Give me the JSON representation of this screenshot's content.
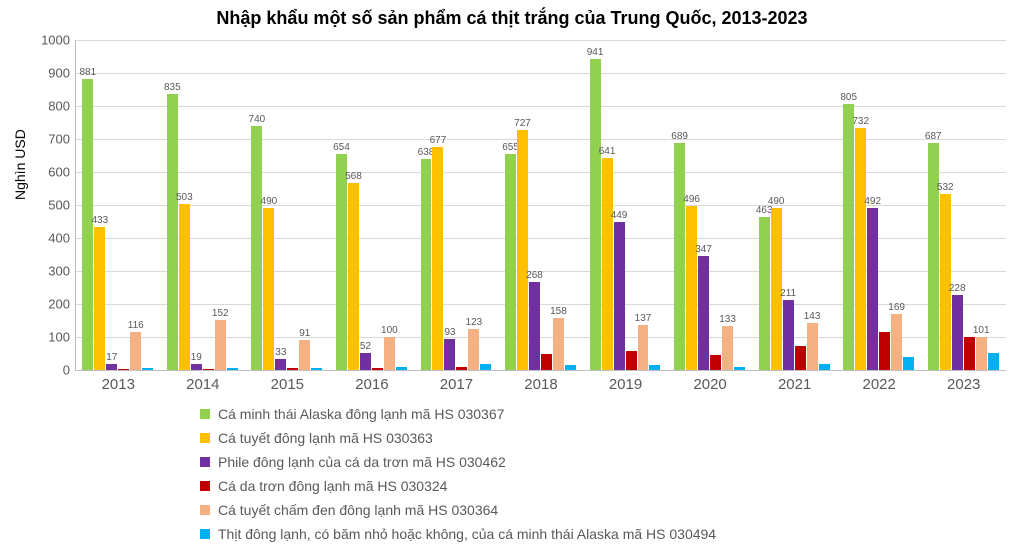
{
  "chart": {
    "type": "bar",
    "title": "Nhập khẩu một số sản phẩm cá thịt trắng của Trung Quốc, 2013-2023",
    "title_fontsize": 18,
    "ylabel": "Nghìn USD",
    "ylabel_fontsize": 14,
    "background_color": "#ffffff",
    "grid_color": "#d9d9d9",
    "axis_color": "#bfbfbf",
    "tick_label_color": "#595959",
    "ylim": [
      0,
      1000
    ],
    "ytick_step": 100,
    "yticks": [
      "0",
      "100",
      "200",
      "300",
      "400",
      "500",
      "600",
      "700",
      "800",
      "900",
      "1000"
    ],
    "categories": [
      "2013",
      "2014",
      "2015",
      "2016",
      "2017",
      "2018",
      "2019",
      "2020",
      "2021",
      "2022",
      "2023"
    ],
    "legend_position": "bottom",
    "bar_gap_ratio": 0.15,
    "series": [
      {
        "name": "Cá minh thái Alaska đông lạnh mã HS 030367",
        "color": "#92d050",
        "values": [
          881,
          835,
          740,
          654,
          638,
          655,
          941,
          689,
          463,
          805,
          687
        ]
      },
      {
        "name": "Cá tuyết đông lạnh mã HS 030363",
        "color": "#ffc000",
        "values": [
          433,
          503,
          490,
          568,
          677,
          727,
          641,
          496,
          490,
          732,
          532
        ]
      },
      {
        "name": "Phile đông lạnh của cá da trơn mã HS 030462",
        "color": "#7030a0",
        "values": [
          17,
          19,
          33,
          52,
          93,
          268,
          449,
          347,
          211,
          492,
          228
        ]
      },
      {
        "name": "Cá da trơn đông lạnh mã HS 030324",
        "color": "#c00000",
        "values": [
          3,
          4,
          5,
          7,
          8,
          48,
          58,
          45,
          72,
          115,
          101
        ]
      },
      {
        "name": "Cá tuyết chấm đen đông lạnh mã HS 030364",
        "color": "#f4b183",
        "values": [
          116,
          152,
          91,
          100,
          123,
          158,
          137,
          133,
          143,
          169,
          101
        ]
      },
      {
        "name": "Thịt đông lạnh, có băm nhỏ hoặc không, của cá minh thái Alaska mã HS 030494",
        "color": "#00b0f0",
        "values": [
          6,
          7,
          6,
          10,
          18,
          15,
          14,
          10,
          18,
          38,
          52
        ]
      }
    ],
    "visible_bar_labels": {
      "0": {
        "0": "881",
        "1": "433",
        "2": "17",
        "4": "116"
      },
      "1": {
        "0": "835",
        "1": "503",
        "2": "19",
        "4": "152"
      },
      "2": {
        "0": "740",
        "1": "490",
        "2": "33",
        "4": "91"
      },
      "3": {
        "0": "654",
        "1": "568",
        "2": "52",
        "4": "100"
      },
      "4": {
        "0": "638",
        "1": "677",
        "2": "93",
        "4": "123"
      },
      "5": {
        "0": "655",
        "1": "727",
        "2": "268",
        "4": "158"
      },
      "6": {
        "0": "941",
        "1": "641",
        "2": "449",
        "4": "137"
      },
      "7": {
        "0": "689",
        "1": "496",
        "2": "347",
        "4": "133"
      },
      "8": {
        "0": "463",
        "1": "490",
        "2": "211",
        "4": "143"
      },
      "9": {
        "0": "805",
        "1": "732",
        "2": "492",
        "4": "169"
      },
      "10": {
        "0": "687",
        "1": "532",
        "2": "228",
        "4": "101"
      }
    }
  }
}
